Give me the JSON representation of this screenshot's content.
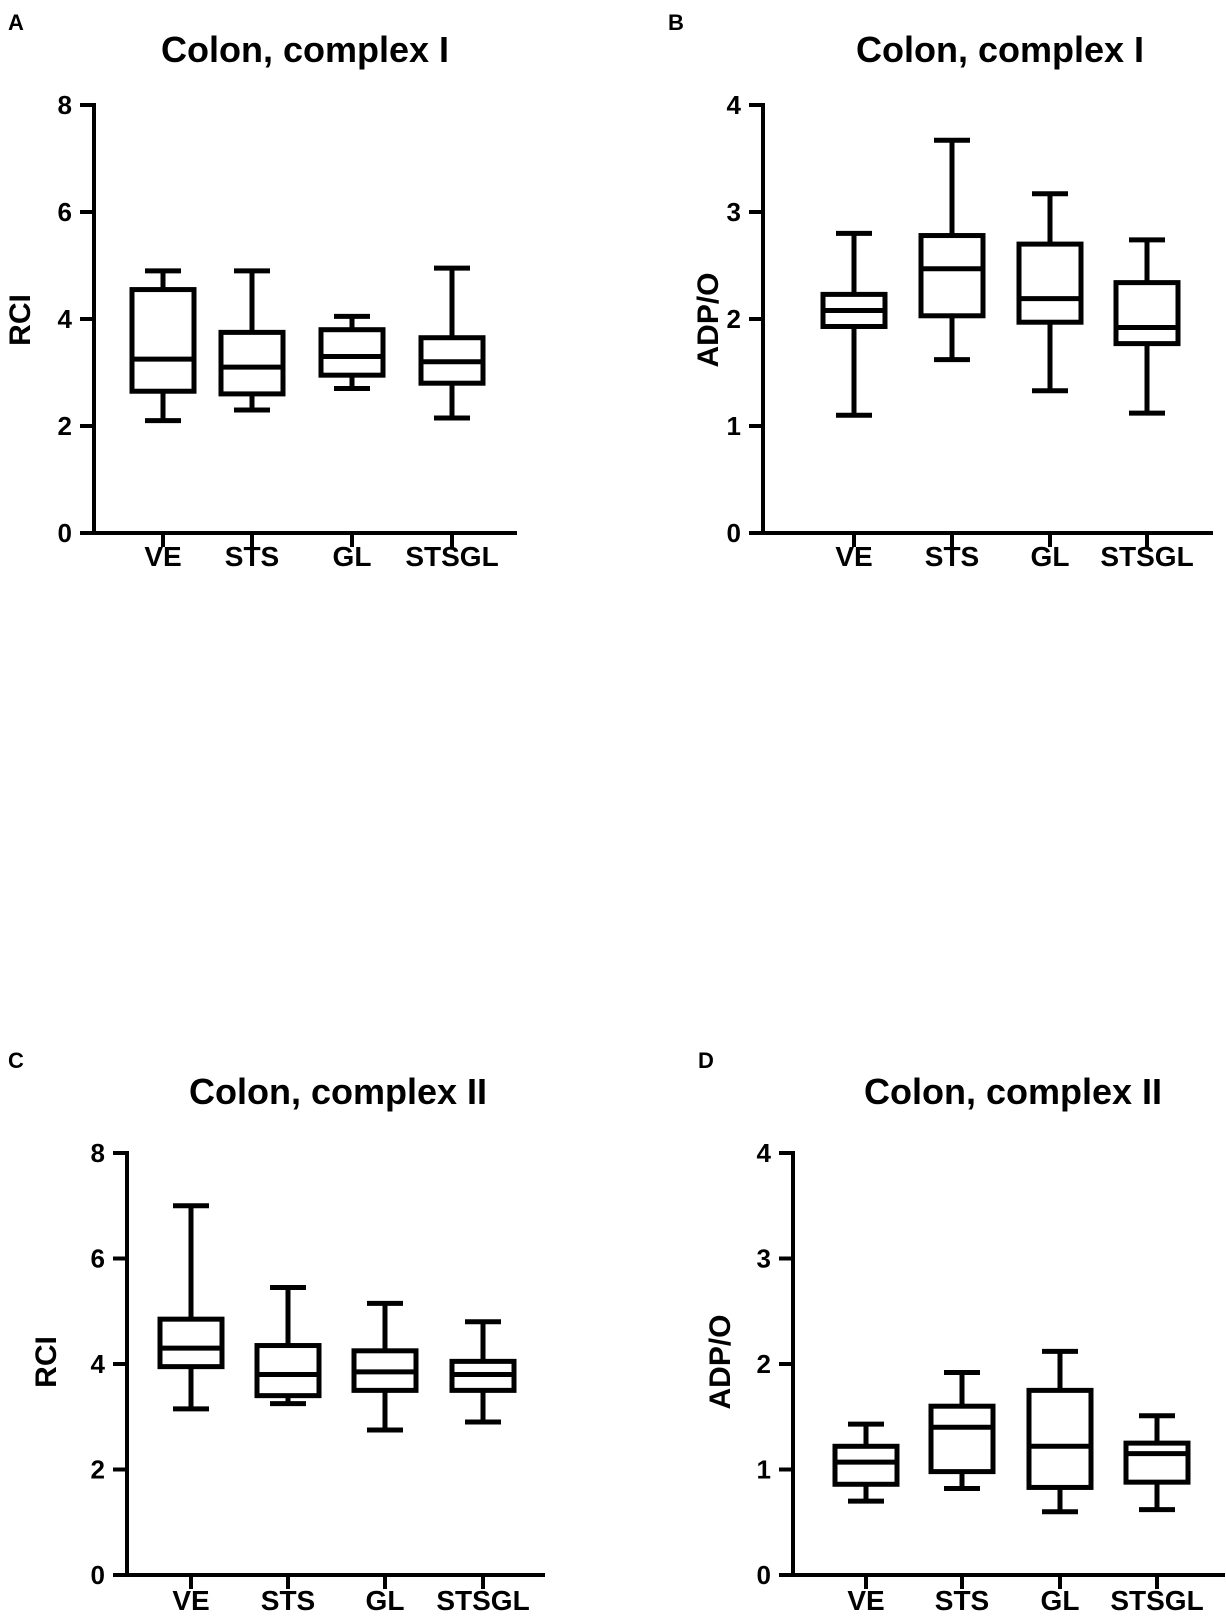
{
  "chart_data": [
    {
      "panel": "A",
      "type": "box",
      "title": "Colon, complex I",
      "xlabel": "",
      "ylabel": "RCI",
      "ylim": [
        0,
        8
      ],
      "yticks": [
        0,
        2,
        4,
        6,
        8
      ],
      "categories": [
        "VE",
        "STS",
        "GL",
        "STSGL"
      ],
      "boxes": [
        {
          "min": 2.1,
          "q1": 2.65,
          "median": 3.25,
          "q3": 4.55,
          "max": 4.9
        },
        {
          "min": 2.3,
          "q1": 2.6,
          "median": 3.1,
          "q3": 3.75,
          "max": 4.9
        },
        {
          "min": 2.7,
          "q1": 2.95,
          "median": 3.3,
          "q3": 3.8,
          "max": 4.05
        },
        {
          "min": 2.15,
          "q1": 2.8,
          "median": 3.2,
          "q3": 3.65,
          "max": 4.95
        }
      ]
    },
    {
      "panel": "B",
      "type": "box",
      "title": "Colon, complex I",
      "xlabel": "",
      "ylabel": "ADP/O",
      "ylim": [
        0,
        4
      ],
      "yticks": [
        0,
        1,
        2,
        3,
        4
      ],
      "categories": [
        "VE",
        "STS",
        "GL",
        "STSGL"
      ],
      "boxes": [
        {
          "min": 1.1,
          "q1": 1.93,
          "median": 2.08,
          "q3": 2.23,
          "max": 2.8
        },
        {
          "min": 1.62,
          "q1": 2.03,
          "median": 2.47,
          "q3": 2.78,
          "max": 3.67
        },
        {
          "min": 1.33,
          "q1": 1.97,
          "median": 2.19,
          "q3": 2.7,
          "max": 3.17
        },
        {
          "min": 1.12,
          "q1": 1.77,
          "median": 1.92,
          "q3": 2.34,
          "max": 2.74
        }
      ]
    },
    {
      "panel": "C",
      "type": "box",
      "title": "Colon, complex II",
      "xlabel": "",
      "ylabel": "RCI",
      "ylim": [
        0,
        8
      ],
      "yticks": [
        0,
        2,
        4,
        6,
        8
      ],
      "categories": [
        "VE",
        "STS",
        "GL",
        "STSGL"
      ],
      "boxes": [
        {
          "min": 3.15,
          "q1": 3.95,
          "median": 4.3,
          "q3": 4.85,
          "max": 7.0
        },
        {
          "min": 3.25,
          "q1": 3.4,
          "median": 3.8,
          "q3": 4.35,
          "max": 5.45
        },
        {
          "min": 2.75,
          "q1": 3.5,
          "median": 3.85,
          "q3": 4.25,
          "max": 5.15
        },
        {
          "min": 2.9,
          "q1": 3.5,
          "median": 3.8,
          "q3": 4.05,
          "max": 4.8
        }
      ]
    },
    {
      "panel": "D",
      "type": "box",
      "title": "Colon, complex II",
      "xlabel": "",
      "ylabel": "ADP/O",
      "ylim": [
        0,
        4
      ],
      "yticks": [
        0,
        1,
        2,
        3,
        4
      ],
      "categories": [
        "VE",
        "STS",
        "GL",
        "STSGL"
      ],
      "boxes": [
        {
          "min": 0.7,
          "q1": 0.86,
          "median": 1.07,
          "q3": 1.22,
          "max": 1.43
        },
        {
          "min": 0.82,
          "q1": 0.98,
          "median": 1.4,
          "q3": 1.6,
          "max": 1.92
        },
        {
          "min": 0.6,
          "q1": 0.83,
          "median": 1.22,
          "q3": 1.75,
          "max": 2.12
        },
        {
          "min": 0.62,
          "q1": 0.88,
          "median": 1.15,
          "q3": 1.25,
          "max": 1.51
        }
      ]
    }
  ]
}
